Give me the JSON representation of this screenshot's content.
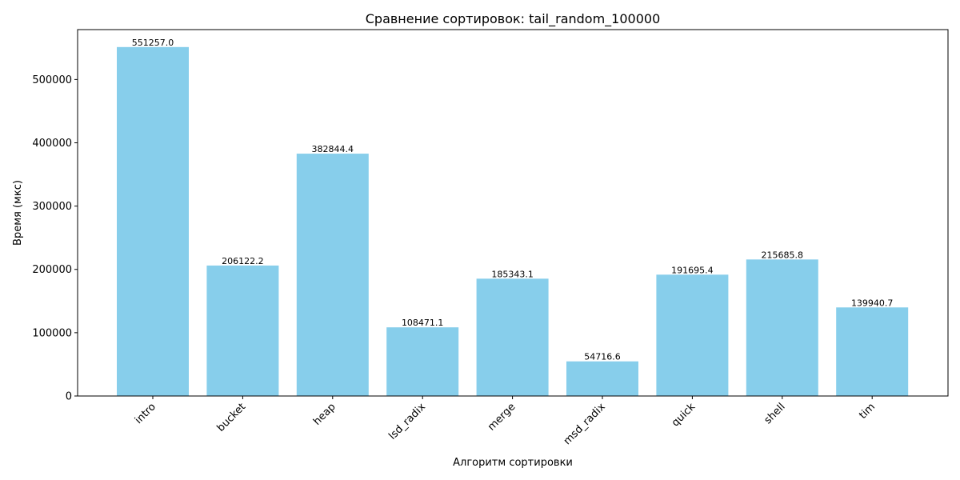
{
  "chart_data": {
    "type": "bar",
    "title": "Сравнение сортировок: tail_random_100000",
    "xlabel": "Алгоритм сортировки",
    "ylabel": "Время (мкс)",
    "categories": [
      "intro",
      "bucket",
      "heap",
      "lsd_radix",
      "merge",
      "msd_radix",
      "quick",
      "shell",
      "tim"
    ],
    "values": [
      551257.0,
      206122.2,
      382844.4,
      108471.1,
      185343.1,
      54716.6,
      191695.4,
      215685.8,
      139940.7
    ],
    "value_labels": [
      "551257.0",
      "206122.2",
      "382844.4",
      "108471.1",
      "185343.1",
      "54716.6",
      "191695.4",
      "215685.8",
      "139940.7"
    ],
    "yticks": [
      0,
      100000,
      200000,
      300000,
      400000,
      500000
    ],
    "ytick_labels": [
      "0",
      "100000",
      "200000",
      "300000",
      "400000",
      "500000"
    ],
    "ylim": [
      0,
      578820
    ],
    "bar_color": "#87ceeb",
    "grid": false,
    "legend": "none"
  }
}
